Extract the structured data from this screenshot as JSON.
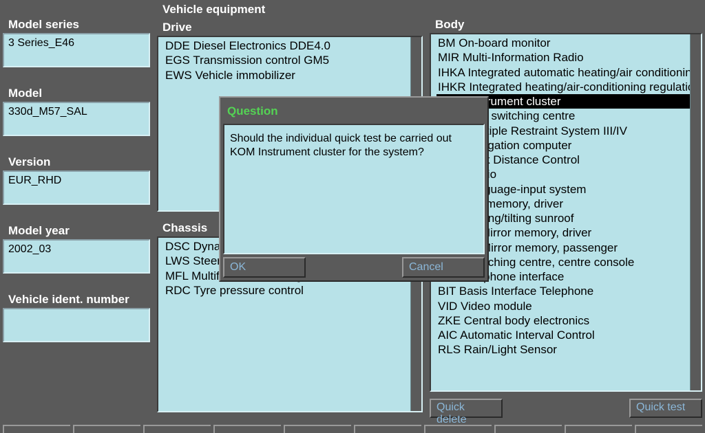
{
  "colors": {
    "background": "#5a5a5a",
    "panel": "#b8e2e8",
    "label_text": "#ffffff",
    "button_text": "#8bb7d8",
    "dialog_title": "#54d354",
    "selected_bg": "#000000",
    "selected_text": "#ffffff"
  },
  "header": {
    "vehicle_equipment": "Vehicle equipment"
  },
  "left": {
    "model_series": {
      "label": "Model series",
      "value": "3 Series_E46"
    },
    "model": {
      "label": "Model",
      "value": "330d_M57_SAL"
    },
    "version": {
      "label": "Version",
      "value": "EUR_RHD"
    },
    "model_year": {
      "label": "Model year",
      "value": "2002_03"
    },
    "vin": {
      "label": "Vehicle ident. number",
      "value": ""
    }
  },
  "drive": {
    "label": "Drive",
    "items": [
      "DDE Diesel Electronics DDE4.0",
      "EGS Transmission control GM5",
      "EWS Vehicle immobilizer"
    ]
  },
  "chassis": {
    "label": "Chassis",
    "items": [
      "DSC Dynamic Stability Control",
      "LWS Steering angle sensor",
      "MFL Multifunction steering wheel",
      "RDC Tyre pressure control"
    ]
  },
  "body": {
    "label": "Body",
    "selected_index": 4,
    "items": [
      "BM On-board monitor",
      "MIR Multi-Information Radio",
      "IHKA Integrated automatic heating/air conditioning",
      "IHKR Integrated heating/air-conditioning regulation",
      "KOM Instrument cluster",
      "LSZ Light switching centre",
      "MRS Multiple Restraint System III/IV",
      "NAV Navigation computer",
      "PDC Park Distance Control",
      "RAD Radio",
      "SES Language-input system",
      "SM Seat memory, driver",
      "SHD Sliding/tilting sunroof",
      "SPMFT Mirror memory, driver",
      "SPMBT Mirror memory, passenger",
      "SZM Switching centre, centre console",
      "TEL Telephone interface",
      "BIT Basis Interface Telephone",
      "VID Video module",
      "ZKE Central body electronics",
      "AIC Automatic Interval Control",
      "RLS Rain/Light Sensor"
    ]
  },
  "buttons": {
    "quick_delete": "Quick delete",
    "quick_test": "Quick test"
  },
  "dialog": {
    "title": "Question",
    "line1": "Should the individual quick test be carried out",
    "line2": "KOM Instrument cluster for the system?",
    "ok": "OK",
    "cancel": "Cancel"
  }
}
